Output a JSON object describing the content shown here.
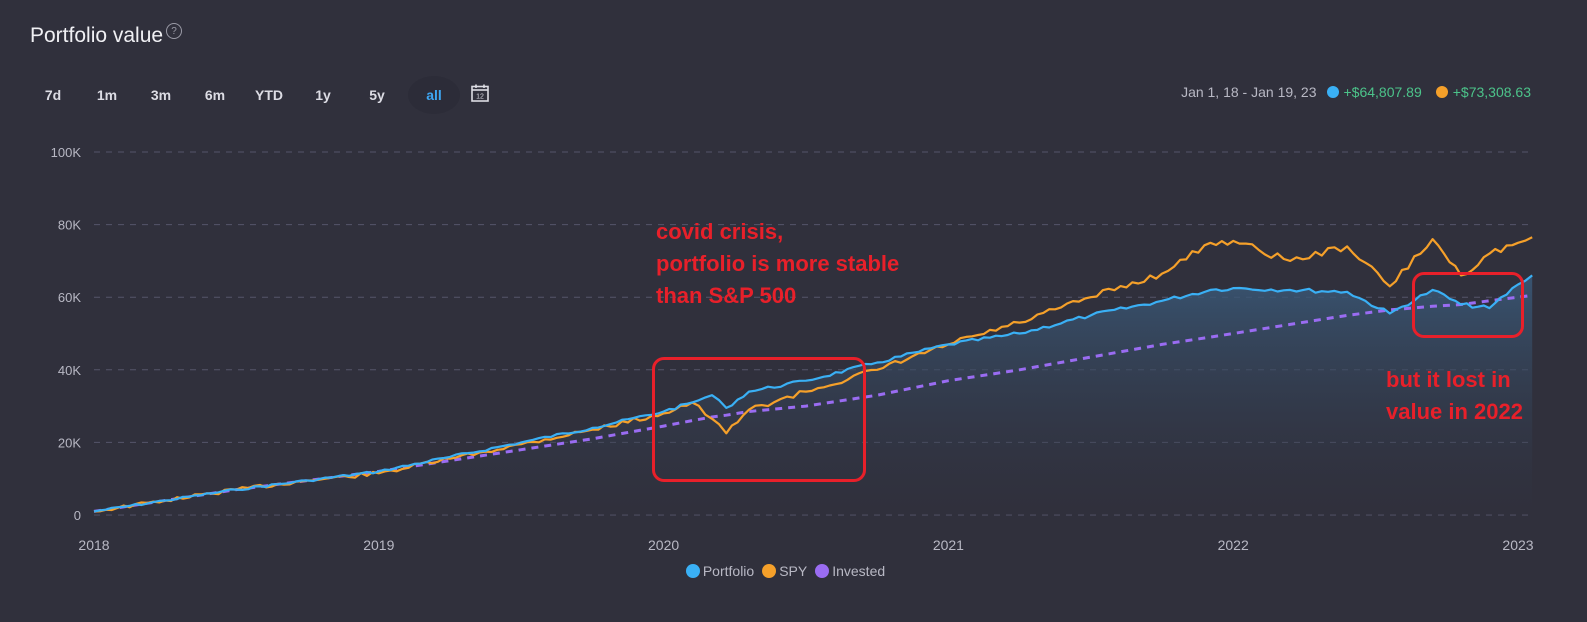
{
  "header": {
    "title": "Portfolio value",
    "help_icon": "?"
  },
  "ranges": [
    {
      "label": "7d",
      "active": false
    },
    {
      "label": "1m",
      "active": false
    },
    {
      "label": "3m",
      "active": false
    },
    {
      "label": "6m",
      "active": false
    },
    {
      "label": "YTD",
      "active": false
    },
    {
      "label": "1y",
      "active": false
    },
    {
      "label": "5y",
      "active": false
    },
    {
      "label": "all",
      "active": true
    }
  ],
  "calendar_icon": "calendar-12",
  "summary": {
    "date_range": "Jan 1, 18 - Jan 19, 23",
    "portfolio_gain": "+$64,807.89",
    "spy_gain": "+$73,308.63"
  },
  "colors": {
    "background": "#30303c",
    "portfolio": "#3ab0f5",
    "spy": "#f5a02a",
    "invested": "#9a6cf2",
    "gain": "#4cc38a",
    "annotation": "#e8202a",
    "grid": "#55556a",
    "axis_text": "#b8b8c4"
  },
  "annotations": [
    {
      "text_lines": [
        "covid crisis,",
        "portfolio is more stable",
        "than S&P 500"
      ]
    },
    {
      "text_lines": [
        "but it lost in",
        "value in 2022"
      ]
    }
  ],
  "legend": [
    {
      "label": "Portfolio",
      "color": "#3ab0f5"
    },
    {
      "label": "SPY",
      "color": "#f5a02a"
    },
    {
      "label": "Invested",
      "color": "#9a6cf2"
    }
  ],
  "chart_data": {
    "type": "line",
    "title": "Portfolio value",
    "xlabel": "",
    "ylabel": "",
    "ylim": [
      0,
      100000
    ],
    "y_ticks": [
      "0",
      "20K",
      "40K",
      "60K",
      "80K",
      "100K"
    ],
    "x_ticks": [
      "2018",
      "2019",
      "2020",
      "2021",
      "2022",
      "2023"
    ],
    "grid": true,
    "legend_position": "bottom",
    "x": [
      2018.0,
      2018.25,
      2018.5,
      2018.75,
      2019.0,
      2019.25,
      2019.5,
      2019.75,
      2020.0,
      2020.1,
      2020.17,
      2020.22,
      2020.3,
      2020.5,
      2020.75,
      2021.0,
      2021.25,
      2021.5,
      2021.75,
      2021.92,
      2022.0,
      2022.2,
      2022.4,
      2022.55,
      2022.7,
      2022.8,
      2022.9,
      2023.0,
      2023.05
    ],
    "series": [
      {
        "name": "Portfolio",
        "values": [
          1000,
          4000,
          7000,
          9500,
          12000,
          16000,
          20000,
          24000,
          28500,
          31000,
          33000,
          29500,
          34000,
          37000,
          42000,
          47000,
          50000,
          55000,
          59000,
          62000,
          62500,
          62000,
          61500,
          55500,
          62000,
          58000,
          57000,
          63500,
          66000
        ]
      },
      {
        "name": "SPY",
        "values": [
          1000,
          4000,
          7000,
          9500,
          11500,
          15500,
          19500,
          23500,
          28000,
          31000,
          26500,
          22500,
          29000,
          34000,
          40000,
          47000,
          53000,
          60000,
          66500,
          75000,
          75500,
          70000,
          74000,
          63000,
          76000,
          66000,
          72000,
          75000,
          76500
        ]
      },
      {
        "name": "Invested",
        "values": [
          1000,
          4000,
          7000,
          9500,
          12000,
          15000,
          18000,
          21000,
          24500,
          26000,
          27000,
          27500,
          28500,
          30000,
          33000,
          37000,
          40000,
          43500,
          47000,
          49000,
          50000,
          52500,
          55000,
          56500,
          57500,
          58000,
          59000,
          60000,
          60500
        ]
      }
    ]
  }
}
